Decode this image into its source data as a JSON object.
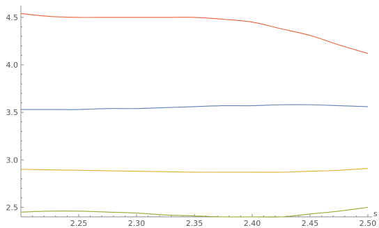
{
  "chart_data": {
    "type": "line",
    "title": "",
    "xlabel": "s",
    "ylabel": "",
    "xlim": [
      2.2,
      2.5
    ],
    "ylim": [
      2.4,
      4.58
    ],
    "grid": false,
    "x_ticks": [
      {
        "value": 2.25,
        "label": "2.25"
      },
      {
        "value": 2.3,
        "label": "2.30"
      },
      {
        "value": 2.35,
        "label": "2.35"
      },
      {
        "value": 2.4,
        "label": "2.40"
      },
      {
        "value": 2.45,
        "label": "2.45"
      },
      {
        "value": 2.5,
        "label": "2.50"
      }
    ],
    "y_ticks": [
      {
        "value": 2.5,
        "label": "2.5"
      },
      {
        "value": 3.0,
        "label": "3.0"
      },
      {
        "value": 3.5,
        "label": "3.5"
      },
      {
        "value": 4.0,
        "label": "4.0"
      },
      {
        "value": 4.5,
        "label": "4.5"
      }
    ],
    "x": [
      2.2,
      2.225,
      2.25,
      2.275,
      2.3,
      2.325,
      2.35,
      2.375,
      2.4,
      2.425,
      2.45,
      2.475,
      2.5
    ],
    "series": [
      {
        "color": "#e8643c",
        "values": [
          4.54,
          4.51,
          4.5,
          4.5,
          4.5,
          4.5,
          4.5,
          4.48,
          4.45,
          4.38,
          4.31,
          4.21,
          4.12
        ]
      },
      {
        "color": "#5e81b5",
        "values": [
          3.53,
          3.53,
          3.53,
          3.54,
          3.54,
          3.55,
          3.56,
          3.57,
          3.57,
          3.58,
          3.58,
          3.57,
          3.56
        ]
      },
      {
        "color": "#e0b030",
        "values": [
          2.9,
          2.895,
          2.89,
          2.885,
          2.88,
          2.875,
          2.87,
          2.87,
          2.87,
          2.87,
          2.88,
          2.89,
          2.91
        ]
      },
      {
        "color": "#8fb032",
        "values": [
          2.45,
          2.46,
          2.46,
          2.45,
          2.44,
          2.42,
          2.41,
          2.4,
          2.4,
          2.4,
          2.43,
          2.46,
          2.5
        ]
      }
    ]
  }
}
